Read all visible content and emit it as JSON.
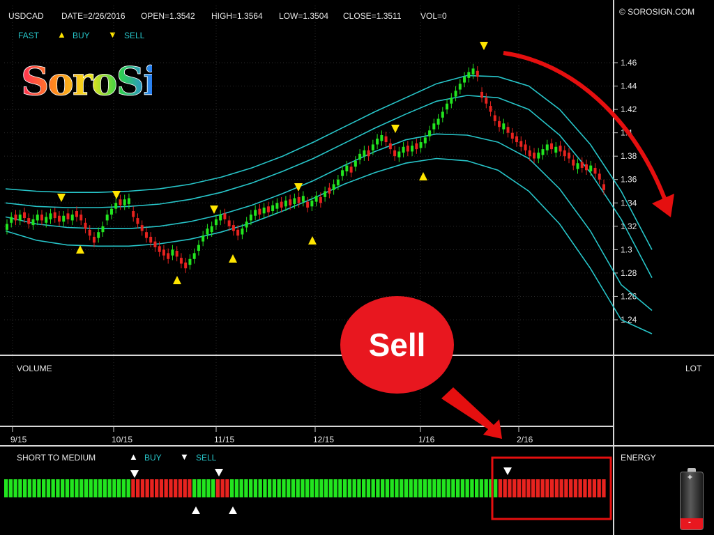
{
  "header": {
    "symbol": "USDCAD",
    "date": "DATE=2/26/2016",
    "open": "OPEN=1.3542",
    "high": "HIGH=1.3564",
    "low": "LOW=1.3504",
    "close": "CLOSE=1.3511",
    "vol": "VOL=0",
    "copyright": "© SOROSIGN.COM"
  },
  "legend_top": {
    "fast": "FAST",
    "buy": "BUY",
    "sell": "SELL"
  },
  "logo": {
    "text": "SoroSign"
  },
  "volume_panel": {
    "label": "VOLUME",
    "lot_label": "LOT"
  },
  "indicator_panel": {
    "label": "SHORT TO MEDIUM",
    "buy": "BUY",
    "sell": "SELL",
    "energy": "ENERGY",
    "battery_plus": "+",
    "battery_minus": "-"
  },
  "callout": {
    "text": "Sell"
  },
  "colors": {
    "up": "#22e51f",
    "down": "#e8231f",
    "band": "#27c5c9",
    "signal": "#ffe500",
    "arrow": "#e50f0f",
    "grid": "#2c2c2c"
  },
  "chart_data": {
    "type": "candlestick",
    "title": "",
    "ylim": [
      1.22,
      1.48
    ],
    "y_ticks": [
      "1.46",
      "1.44",
      "1.42",
      "1.4",
      "1.38",
      "1.36",
      "1.34",
      "1.32",
      "1.3",
      "1.28",
      "1.26",
      "1.24"
    ],
    "x_ticks": [
      "9/15",
      "10/15",
      "11/15",
      "12/15",
      "1/16",
      "2/16"
    ],
    "candles_close": [
      1.322,
      1.328,
      1.325,
      1.33,
      1.327,
      1.322,
      1.326,
      1.33,
      1.325,
      1.328,
      1.331,
      1.327,
      1.324,
      1.329,
      1.326,
      1.33,
      1.328,
      1.325,
      1.318,
      1.312,
      1.306,
      1.315,
      1.32,
      1.33,
      1.335,
      1.34,
      1.338,
      1.343,
      1.344,
      1.328,
      1.322,
      1.316,
      1.31,
      1.306,
      1.302,
      1.298,
      1.295,
      1.292,
      1.3,
      1.294,
      1.288,
      1.284,
      1.292,
      1.297,
      1.304,
      1.312,
      1.318,
      1.32,
      1.326,
      1.33,
      1.326,
      1.32,
      1.316,
      1.312,
      1.318,
      1.324,
      1.33,
      1.334,
      1.33,
      1.336,
      1.332,
      1.338,
      1.34,
      1.336,
      1.342,
      1.338,
      1.344,
      1.34,
      1.346,
      1.336,
      1.342,
      1.346,
      1.34,
      1.35,
      1.348,
      1.356,
      1.36,
      1.368,
      1.372,
      1.366,
      1.376,
      1.382,
      1.385,
      1.38,
      1.39,
      1.395,
      1.398,
      1.392,
      1.386,
      1.38,
      1.384,
      1.388,
      1.384,
      1.389,
      1.386,
      1.392,
      1.396,
      1.402,
      1.408,
      1.412,
      1.418,
      1.425,
      1.43,
      1.436,
      1.442,
      1.448,
      1.452,
      1.455,
      1.448,
      1.43,
      1.425,
      1.418,
      1.41,
      1.405,
      1.408,
      1.4,
      1.395,
      1.392,
      1.388,
      1.385,
      1.38,
      1.378,
      1.383,
      1.386,
      1.39,
      1.386,
      1.388,
      1.384,
      1.38,
      1.378,
      1.372,
      1.374,
      1.37,
      1.368,
      1.372,
      1.365,
      1.36,
      1.351
    ],
    "candles_up": [
      true,
      true,
      false,
      true,
      false,
      false,
      true,
      true,
      false,
      true,
      true,
      false,
      false,
      true,
      false,
      true,
      false,
      false,
      false,
      false,
      false,
      true,
      true,
      true,
      true,
      true,
      false,
      true,
      true,
      false,
      false,
      false,
      false,
      false,
      false,
      false,
      false,
      false,
      true,
      false,
      false,
      false,
      true,
      true,
      true,
      true,
      true,
      true,
      true,
      true,
      false,
      false,
      false,
      false,
      true,
      true,
      true,
      true,
      false,
      true,
      false,
      true,
      true,
      false,
      true,
      false,
      true,
      false,
      true,
      false,
      true,
      true,
      false,
      true,
      false,
      true,
      true,
      true,
      true,
      false,
      true,
      true,
      true,
      false,
      true,
      true,
      true,
      false,
      false,
      false,
      true,
      true,
      false,
      true,
      false,
      true,
      true,
      true,
      true,
      true,
      true,
      true,
      true,
      true,
      true,
      true,
      true,
      true,
      false,
      false,
      false,
      false,
      false,
      false,
      true,
      false,
      false,
      false,
      false,
      false,
      false,
      false,
      true,
      true,
      true,
      false,
      true,
      false,
      false,
      false,
      false,
      true,
      false,
      false,
      true,
      false,
      false,
      false
    ],
    "band_upper": [
      1.352,
      1.35,
      1.349,
      1.349,
      1.35,
      1.352,
      1.356,
      1.362,
      1.37,
      1.38,
      1.392,
      1.405,
      1.418,
      1.43,
      1.442,
      1.449,
      1.448,
      1.44,
      1.42,
      1.39,
      1.35,
      1.3
    ],
    "band_mid_upper": [
      1.34,
      1.337,
      1.336,
      1.336,
      1.337,
      1.339,
      1.343,
      1.349,
      1.357,
      1.367,
      1.378,
      1.391,
      1.404,
      1.416,
      1.427,
      1.432,
      1.43,
      1.42,
      1.398,
      1.366,
      1.326,
      1.276
    ],
    "band_mid_lower": [
      1.328,
      1.322,
      1.319,
      1.318,
      1.318,
      1.32,
      1.324,
      1.33,
      1.338,
      1.348,
      1.359,
      1.372,
      1.384,
      1.394,
      1.399,
      1.398,
      1.392,
      1.378,
      1.352,
      1.316,
      1.27,
      1.248
    ],
    "band_lower": [
      1.316,
      1.308,
      1.304,
      1.303,
      1.303,
      1.305,
      1.309,
      1.315,
      1.323,
      1.333,
      1.344,
      1.356,
      1.366,
      1.374,
      1.378,
      1.376,
      1.368,
      1.35,
      1.322,
      1.284,
      1.24,
      1.228
    ],
    "strip_pattern": [
      {
        "color": "up",
        "count": 27
      },
      {
        "color": "down",
        "count": 13
      },
      {
        "color": "up",
        "count": 5
      },
      {
        "color": "down",
        "count": 3
      },
      {
        "color": "up",
        "count": 57
      },
      {
        "color": "down",
        "count": 23
      }
    ]
  }
}
